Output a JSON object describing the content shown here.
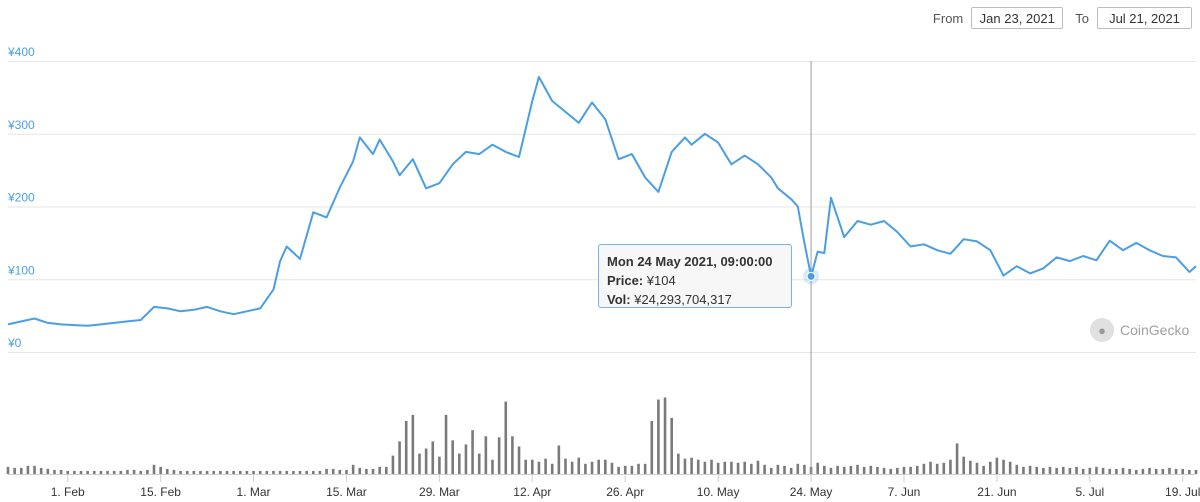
{
  "range": {
    "from_label": "From",
    "from_value": "Jan 23, 2021",
    "to_label": "To",
    "to_value": "Jul 21, 2021"
  },
  "tooltip": {
    "heading": "Mon 24 May 2021, 09:00:00",
    "price_label": "Price:",
    "price_value": "¥104",
    "vol_label": "Vol:",
    "vol_value": "¥24,293,704,317"
  },
  "logo": {
    "text": "CoinGecko",
    "icon": "gecko-icon"
  },
  "colors": {
    "line": "#4a9ee6",
    "volume": "#7a7a7a",
    "grid": "#e6e6e6",
    "axis_label": "#4a9ee6"
  },
  "chart_data": {
    "type": "line",
    "title": "",
    "xlabel": "",
    "ylabel": "",
    "x_start": "2021-01-23",
    "x_end": "2021-07-21",
    "ylim": [
      0,
      400
    ],
    "y_ticks": [
      "¥0",
      "¥100",
      "¥200",
      "¥300",
      "¥400"
    ],
    "y_tick_values": [
      0,
      100,
      200,
      300,
      400
    ],
    "x_ticks": [
      {
        "label": "1. Feb",
        "date": "2021-02-01"
      },
      {
        "label": "15. Feb",
        "date": "2021-02-15"
      },
      {
        "label": "1. Mar",
        "date": "2021-03-01"
      },
      {
        "label": "15. Mar",
        "date": "2021-03-15"
      },
      {
        "label": "29. Mar",
        "date": "2021-03-29"
      },
      {
        "label": "12. Apr",
        "date": "2021-04-12"
      },
      {
        "label": "26. Apr",
        "date": "2021-04-26"
      },
      {
        "label": "10. May",
        "date": "2021-05-10"
      },
      {
        "label": "24. May",
        "date": "2021-05-24"
      },
      {
        "label": "7. Jun",
        "date": "2021-06-07"
      },
      {
        "label": "21. Jun",
        "date": "2021-06-21"
      },
      {
        "label": "5. Jul",
        "date": "2021-07-05"
      },
      {
        "label": "19. Jul",
        "date": "2021-07-19"
      }
    ],
    "grid": true,
    "highlight": {
      "date": "2021-05-24",
      "price": 104
    },
    "series": [
      {
        "name": "Price",
        "points": [
          [
            "2021-01-23",
            38
          ],
          [
            "2021-01-25",
            42
          ],
          [
            "2021-01-27",
            46
          ],
          [
            "2021-01-29",
            40
          ],
          [
            "2021-01-31",
            38
          ],
          [
            "2021-02-02",
            37
          ],
          [
            "2021-02-04",
            36
          ],
          [
            "2021-02-06",
            38
          ],
          [
            "2021-02-08",
            40
          ],
          [
            "2021-02-10",
            42
          ],
          [
            "2021-02-12",
            44
          ],
          [
            "2021-02-14",
            62
          ],
          [
            "2021-02-16",
            60
          ],
          [
            "2021-02-18",
            56
          ],
          [
            "2021-02-20",
            58
          ],
          [
            "2021-02-22",
            62
          ],
          [
            "2021-02-24",
            56
          ],
          [
            "2021-02-26",
            52
          ],
          [
            "2021-02-28",
            56
          ],
          [
            "2021-03-02",
            60
          ],
          [
            "2021-03-04",
            86
          ],
          [
            "2021-03-05",
            125
          ],
          [
            "2021-03-06",
            145
          ],
          [
            "2021-03-08",
            128
          ],
          [
            "2021-03-10",
            192
          ],
          [
            "2021-03-12",
            185
          ],
          [
            "2021-03-14",
            226
          ],
          [
            "2021-03-16",
            262
          ],
          [
            "2021-03-17",
            295
          ],
          [
            "2021-03-19",
            272
          ],
          [
            "2021-03-20",
            292
          ],
          [
            "2021-03-22",
            262
          ],
          [
            "2021-03-23",
            243
          ],
          [
            "2021-03-25",
            265
          ],
          [
            "2021-03-27",
            225
          ],
          [
            "2021-03-29",
            232
          ],
          [
            "2021-03-31",
            258
          ],
          [
            "2021-04-02",
            275
          ],
          [
            "2021-04-04",
            272
          ],
          [
            "2021-04-06",
            285
          ],
          [
            "2021-04-08",
            275
          ],
          [
            "2021-04-10",
            268
          ],
          [
            "2021-04-12",
            345
          ],
          [
            "2021-04-13",
            378
          ],
          [
            "2021-04-15",
            345
          ],
          [
            "2021-04-17",
            330
          ],
          [
            "2021-04-19",
            315
          ],
          [
            "2021-04-21",
            343
          ],
          [
            "2021-04-23",
            320
          ],
          [
            "2021-04-25",
            265
          ],
          [
            "2021-04-27",
            272
          ],
          [
            "2021-04-29",
            240
          ],
          [
            "2021-05-01",
            220
          ],
          [
            "2021-05-03",
            275
          ],
          [
            "2021-05-05",
            295
          ],
          [
            "2021-05-06",
            285
          ],
          [
            "2021-05-08",
            300
          ],
          [
            "2021-05-10",
            288
          ],
          [
            "2021-05-12",
            258
          ],
          [
            "2021-05-14",
            270
          ],
          [
            "2021-05-16",
            258
          ],
          [
            "2021-05-18",
            240
          ],
          [
            "2021-05-19",
            225
          ],
          [
            "2021-05-21",
            210
          ],
          [
            "2021-05-22",
            200
          ],
          [
            "2021-05-23",
            150
          ],
          [
            "2021-05-24",
            104
          ],
          [
            "2021-05-25",
            138
          ],
          [
            "2021-05-26",
            136
          ],
          [
            "2021-05-27",
            212
          ],
          [
            "2021-05-29",
            158
          ],
          [
            "2021-05-31",
            180
          ],
          [
            "2021-06-02",
            175
          ],
          [
            "2021-06-04",
            180
          ],
          [
            "2021-06-06",
            165
          ],
          [
            "2021-06-08",
            145
          ],
          [
            "2021-06-10",
            148
          ],
          [
            "2021-06-12",
            140
          ],
          [
            "2021-06-14",
            135
          ],
          [
            "2021-06-16",
            155
          ],
          [
            "2021-06-18",
            152
          ],
          [
            "2021-06-20",
            140
          ],
          [
            "2021-06-22",
            105
          ],
          [
            "2021-06-24",
            118
          ],
          [
            "2021-06-26",
            108
          ],
          [
            "2021-06-28",
            115
          ],
          [
            "2021-06-30",
            130
          ],
          [
            "2021-07-02",
            125
          ],
          [
            "2021-07-04",
            132
          ],
          [
            "2021-07-06",
            126
          ],
          [
            "2021-07-08",
            153
          ],
          [
            "2021-07-10",
            140
          ],
          [
            "2021-07-12",
            150
          ],
          [
            "2021-07-14",
            140
          ],
          [
            "2021-07-16",
            132
          ],
          [
            "2021-07-18",
            130
          ],
          [
            "2021-07-20",
            110
          ],
          [
            "2021-07-21",
            118
          ]
        ]
      },
      {
        "name": "Volume",
        "values_relative": [
          0.07,
          0.06,
          0.06,
          0.08,
          0.08,
          0.06,
          0.05,
          0.04,
          0.04,
          0.03,
          0.03,
          0.03,
          0.03,
          0.03,
          0.03,
          0.03,
          0.03,
          0.03,
          0.04,
          0.04,
          0.03,
          0.04,
          0.09,
          0.07,
          0.05,
          0.04,
          0.03,
          0.03,
          0.03,
          0.03,
          0.03,
          0.03,
          0.03,
          0.03,
          0.03,
          0.03,
          0.03,
          0.03,
          0.03,
          0.03,
          0.03,
          0.03,
          0.03,
          0.03,
          0.03,
          0.03,
          0.03,
          0.03,
          0.05,
          0.05,
          0.04,
          0.04,
          0.09,
          0.06,
          0.05,
          0.05,
          0.07,
          0.07,
          0.18,
          0.32,
          0.52,
          0.58,
          0.2,
          0.25,
          0.32,
          0.17,
          0.58,
          0.33,
          0.2,
          0.29,
          0.43,
          0.2,
          0.37,
          0.14,
          0.36,
          0.71,
          0.37,
          0.27,
          0.14,
          0.14,
          0.12,
          0.15,
          0.1,
          0.28,
          0.15,
          0.12,
          0.16,
          0.1,
          0.12,
          0.14,
          0.14,
          0.11,
          0.07,
          0.08,
          0.08,
          0.1,
          0.1,
          0.52,
          0.73,
          0.75,
          0.55,
          0.2,
          0.15,
          0.16,
          0.14,
          0.12,
          0.14,
          0.11,
          0.12,
          0.12,
          0.11,
          0.12,
          0.1,
          0.13,
          0.09,
          0.06,
          0.09,
          0.08,
          0.06,
          0.1,
          0.09,
          0.07,
          0.11,
          0.08,
          0.06,
          0.08,
          0.07,
          0.08,
          0.09,
          0.07,
          0.08,
          0.07,
          0.06,
          0.05,
          0.06,
          0.07,
          0.07,
          0.08,
          0.1,
          0.12,
          0.1,
          0.11,
          0.14,
          0.3,
          0.17,
          0.13,
          0.11,
          0.08,
          0.12,
          0.16,
          0.14,
          0.12,
          0.09,
          0.07,
          0.08,
          0.07,
          0.06,
          0.07,
          0.06,
          0.07,
          0.06,
          0.07,
          0.05,
          0.06,
          0.07,
          0.06,
          0.05,
          0.05,
          0.06,
          0.05,
          0.04,
          0.05,
          0.06,
          0.05,
          0.05,
          0.06,
          0.05,
          0.05,
          0.04,
          0.04,
          0.05,
          0.05,
          0.06,
          0.06,
          0.12,
          0.1,
          0.09,
          0.08,
          0.07,
          0.06,
          0.05,
          0.05
        ]
      }
    ]
  }
}
